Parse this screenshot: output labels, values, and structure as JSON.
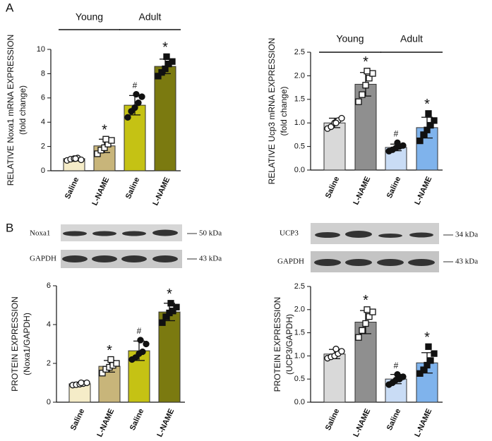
{
  "panels": [
    "A",
    "B"
  ],
  "blots": [
    {
      "rows": [
        {
          "label": "Noxa1",
          "size": "50 kDa"
        },
        {
          "label": "GAPDH",
          "size": "43 kDa"
        }
      ]
    },
    {
      "rows": [
        {
          "label": "UCP3",
          "size": "34 kDa"
        },
        {
          "label": "GAPDH",
          "size": "43 kDa"
        }
      ]
    }
  ],
  "chart_data": [
    {
      "type": "bar",
      "ylabel": "RELATIVE Noxa1 mRNA EXPRESSION",
      "ylabel2": "(fold change)",
      "groups": [
        "Young",
        "Adult"
      ],
      "categories": [
        "Saline",
        "L-NAME",
        "Saline",
        "L-NAME"
      ],
      "values": [
        1.0,
        2.05,
        5.4,
        8.6
      ],
      "errors": [
        0.1,
        0.55,
        0.8,
        0.6
      ],
      "points": [
        [
          0.85,
          0.95,
          1.0,
          1.05,
          0.9,
          1.0
        ],
        [
          1.4,
          1.7,
          1.9,
          2.2,
          2.5,
          2.6
        ],
        [
          4.4,
          4.9,
          5.2,
          5.6,
          6.1,
          6.3
        ],
        [
          7.8,
          8.1,
          8.4,
          8.8,
          9.0,
          9.4
        ]
      ],
      "colors": [
        "#f5ecc8",
        "#c8b57a",
        "#c5c214",
        "#7b7a10"
      ],
      "markers": [
        "open-circle",
        "open-square",
        "circle",
        "square"
      ],
      "bar_labels": [
        null,
        "*",
        "#",
        "*"
      ],
      "ylim": [
        0,
        10
      ],
      "yticks": [
        0,
        2,
        4,
        6,
        8,
        10
      ]
    },
    {
      "type": "bar",
      "ylabel": "RELATIVE Ucp3 mRNA EXPRESSION",
      "ylabel2": "(fold change)",
      "groups": [
        "Young",
        "Adult"
      ],
      "categories": [
        "Saline",
        "L-NAME",
        "Saline",
        "L-NAME"
      ],
      "values": [
        1.0,
        1.82,
        0.48,
        0.9
      ],
      "errors": [
        0.1,
        0.25,
        0.07,
        0.22
      ],
      "points": [
        [
          0.88,
          0.92,
          1.0,
          1.05,
          1.1,
          1.0
        ],
        [
          1.45,
          1.6,
          1.8,
          1.95,
          2.05,
          2.1
        ],
        [
          0.4,
          0.43,
          0.47,
          0.5,
          0.52,
          0.58
        ],
        [
          0.62,
          0.75,
          0.85,
          0.95,
          1.05,
          1.2
        ]
      ],
      "colors": [
        "#d9d9d9",
        "#8f8f8f",
        "#c9dcf5",
        "#7fb3ec"
      ],
      "markers": [
        "open-circle",
        "open-square",
        "circle",
        "square"
      ],
      "bar_labels": [
        null,
        "*",
        "#",
        "*"
      ],
      "ylim": [
        0,
        2.5
      ],
      "yticks": [
        {
          "value": 0,
          "label": "0.0"
        },
        0.5,
        {
          "value": 1,
          "label": "1.0"
        },
        1.5,
        {
          "value": 2,
          "label": "2.0"
        },
        2.5
      ]
    },
    {
      "type": "bar",
      "ylabel": "PROTEIN EXPRESSION",
      "ylabel2": "(Noxa1/GAPDH)",
      "categories": [
        "Saline",
        "L-NAME",
        "Saline",
        "L-NAME"
      ],
      "values": [
        0.95,
        1.85,
        2.65,
        4.65
      ],
      "errors": [
        0.08,
        0.3,
        0.5,
        0.45
      ],
      "points": [
        [
          0.88,
          0.9,
          0.93,
          0.96,
          1.0,
          1.0
        ],
        [
          1.5,
          1.7,
          1.8,
          1.9,
          2.0,
          2.2
        ],
        [
          2.2,
          2.3,
          2.5,
          2.6,
          3.0,
          3.2
        ],
        [
          4.1,
          4.4,
          4.6,
          4.7,
          4.9,
          5.1
        ]
      ],
      "colors": [
        "#f5ecc8",
        "#c8b57a",
        "#c5c214",
        "#7b7a10"
      ],
      "markers": [
        "open-circle",
        "open-square",
        "circle",
        "square"
      ],
      "bar_labels": [
        null,
        "*",
        "#",
        "*"
      ],
      "ylim": [
        0,
        6
      ],
      "yticks": [
        0,
        2,
        4,
        6
      ]
    },
    {
      "type": "bar",
      "ylabel": "PROTEIN EXPRESSION",
      "ylabel2": "(UCP3/GAPDH)",
      "categories": [
        "Saline",
        "L-NAME",
        "Saline",
        "L-NAME"
      ],
      "values": [
        1.04,
        1.73,
        0.5,
        0.85
      ],
      "errors": [
        0.1,
        0.25,
        0.1,
        0.22
      ],
      "points": [
        [
          0.95,
          0.98,
          1.0,
          1.05,
          1.1,
          1.15
        ],
        [
          1.4,
          1.55,
          1.7,
          1.85,
          1.95,
          2.0
        ],
        [
          0.38,
          0.42,
          0.48,
          0.5,
          0.55,
          0.6
        ],
        [
          0.62,
          0.7,
          0.8,
          0.9,
          1.05,
          1.2
        ]
      ],
      "colors": [
        "#d9d9d9",
        "#8f8f8f",
        "#c9dcf5",
        "#7fb3ec"
      ],
      "markers": [
        "open-circle",
        "open-square",
        "circle",
        "square"
      ],
      "bar_labels": [
        null,
        "*",
        "#",
        "*"
      ],
      "ylim": [
        0,
        2.5
      ],
      "yticks": [
        {
          "value": 0,
          "label": "0.0"
        },
        0.5,
        {
          "value": 1,
          "label": "1.0"
        },
        1.5,
        {
          "value": 2,
          "label": "2.0"
        },
        2.5
      ]
    }
  ]
}
